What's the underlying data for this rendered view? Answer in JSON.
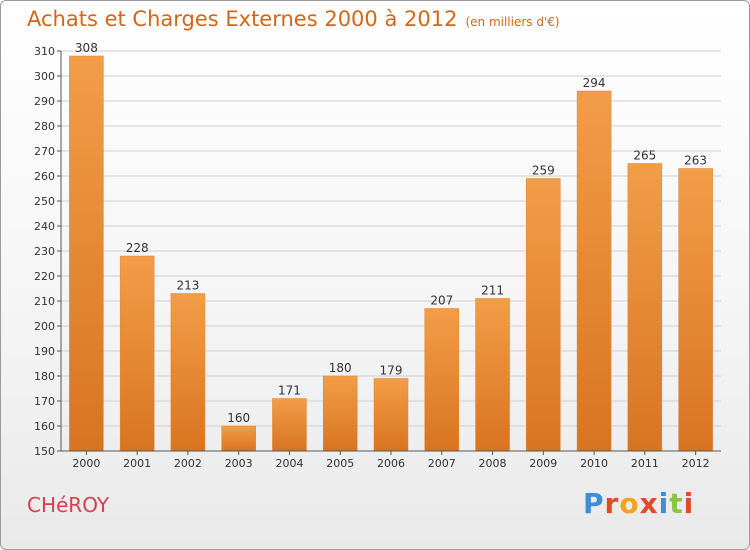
{
  "page": {
    "title": "Achats et Charges Externes 2000 à 2012",
    "subtitle": "(en milliers d'€)",
    "commune": "CHéROY",
    "logo_text": "Proxiti",
    "logo_colors": [
      "#3a8fd8",
      "#e24a2a",
      "#f2a51a",
      "#e24a2a",
      "#3a8fd8",
      "#8bc53f",
      "#e24a2a"
    ]
  },
  "chart_data": {
    "type": "bar",
    "title": "Achats et Charges Externes 2000 à 2012",
    "subtitle": "(en milliers d'€)",
    "categories": [
      "2000",
      "2001",
      "2002",
      "2003",
      "2004",
      "2005",
      "2006",
      "2007",
      "2008",
      "2009",
      "2010",
      "2011",
      "2012"
    ],
    "values": [
      308,
      228,
      213,
      160,
      171,
      180,
      179,
      207,
      211,
      259,
      294,
      265,
      263
    ],
    "ylim": [
      150,
      310
    ],
    "yticks": [
      150,
      160,
      170,
      180,
      190,
      200,
      210,
      220,
      230,
      240,
      250,
      260,
      270,
      280,
      290,
      300,
      310
    ],
    "grid": true,
    "bar_color": "#f29d48",
    "bar_color_dark": "#d87421",
    "axis_color": "#555555"
  }
}
